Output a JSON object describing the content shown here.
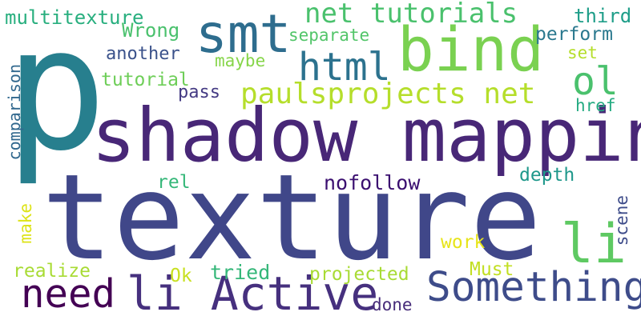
{
  "words": [
    {
      "text": "texture",
      "color": "#404789"
    },
    {
      "text": "p",
      "color": "#277f8e"
    },
    {
      "text": "shadow mapping",
      "color": "#482777"
    },
    {
      "text": "bind",
      "color": "#7ad151"
    },
    {
      "text": "smt",
      "color": "#2e6d8e"
    },
    {
      "text": "html",
      "color": "#2c728e"
    },
    {
      "text": "li Active",
      "color": "#46307e"
    },
    {
      "text": "Something",
      "color": "#3e4c8a"
    },
    {
      "text": "li",
      "color": "#5ec962"
    },
    {
      "text": "need",
      "color": "#440154"
    },
    {
      "text": "paulsprojects net",
      "color": "#b5de2b"
    },
    {
      "text": "net tutorials",
      "color": "#4ac16d"
    },
    {
      "text": "ol",
      "color": "#4ac16d"
    },
    {
      "text": "multitexture",
      "color": "#29af7f"
    },
    {
      "text": "Wrong",
      "color": "#4ac16d"
    },
    {
      "text": "separate",
      "color": "#52c569"
    },
    {
      "text": "another",
      "color": "#3b528b"
    },
    {
      "text": "maybe",
      "color": "#86d549"
    },
    {
      "text": "tutorial",
      "color": "#6ece58"
    },
    {
      "text": "pass",
      "color": "#443a83"
    },
    {
      "text": "comparison",
      "color": "#31688e"
    },
    {
      "text": "third",
      "color": "#1f9e89"
    },
    {
      "text": "perform",
      "color": "#2a788e"
    },
    {
      "text": "set",
      "color": "#b5de2b"
    },
    {
      "text": "href",
      "color": "#25ab82"
    },
    {
      "text": "depth",
      "color": "#1f988b"
    },
    {
      "text": "rel",
      "color": "#35b779"
    },
    {
      "text": "nofollow",
      "color": "#3b0f70"
    },
    {
      "text": "make",
      "color": "#dde318"
    },
    {
      "text": "realize",
      "color": "#a8db34"
    },
    {
      "text": "Ok",
      "color": "#c8e020"
    },
    {
      "text": "tried",
      "color": "#35b779"
    },
    {
      "text": "projected",
      "color": "#a8db34"
    },
    {
      "text": "done",
      "color": "#472c7a"
    },
    {
      "text": "work",
      "color": "#e7e419"
    },
    {
      "text": "Must",
      "color": "#c2df23"
    },
    {
      "text": "scene",
      "color": "#3e4c8a"
    }
  ]
}
